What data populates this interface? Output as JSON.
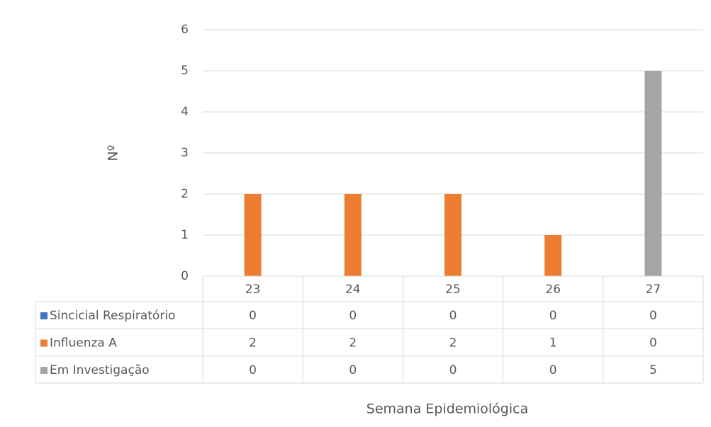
{
  "chart_data": {
    "type": "bar",
    "title": "",
    "xlabel": "Semana Epidemiológica",
    "ylabel": "Nº",
    "ylim": [
      0,
      6
    ],
    "yticks": [
      0,
      1,
      2,
      3,
      4,
      5,
      6
    ],
    "grid": true,
    "legend": "data-table",
    "categories": [
      "23",
      "24",
      "25",
      "26",
      "27"
    ],
    "series": [
      {
        "name": "Sincicial Respiratório",
        "color": "#4472C4",
        "values": [
          0,
          0,
          0,
          0,
          0
        ]
      },
      {
        "name": "Influenza A",
        "color": "#ED7D31",
        "values": [
          2,
          2,
          2,
          1,
          0
        ]
      },
      {
        "name": "Em Investigação",
        "color": "#A5A5A5",
        "values": [
          0,
          0,
          0,
          0,
          5
        ]
      }
    ]
  }
}
